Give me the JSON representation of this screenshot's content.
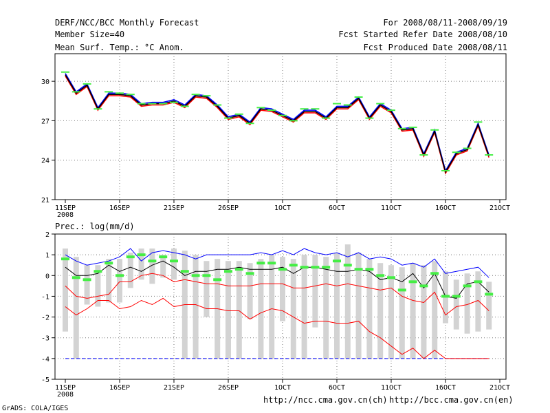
{
  "header": {
    "title": "DERF/NCC/BCC Monthly Forecast",
    "member_size": "Member Size=40",
    "variable": "Mean Surf. Temp.: °C Anom.",
    "period": "For 2008/08/11-2008/09/19",
    "started": "Fcst Started Refer Date 2008/08/10",
    "produced": "Fcst Produced Date 2008/08/11"
  },
  "footer": {
    "url_ncc": "http://ncc.cma.gov.cn(ch)",
    "url_bcc": "http://bcc.cma.gov.cn(en)",
    "credit": "GrADS: COLA/IGES"
  },
  "colors": {
    "member_max": "#0000ff",
    "member_min": "#ff0000",
    "ensemble_mean": "#000000",
    "observed_marker": "#44ee44",
    "spread_bar": "#d3d3d3",
    "grid": "#777777"
  },
  "chart_data": [
    {
      "type": "line",
      "title": "Mean Surf. Temp.: °C Anom.",
      "x_labels": [
        "11SEP",
        "16SEP",
        "21SEP",
        "26SEP",
        "1OCT",
        "6OCT",
        "11OCT",
        "16OCT",
        "21OCT"
      ],
      "x_sublabel": "2008",
      "y_ticks": [
        21,
        24,
        27,
        30
      ],
      "ylim": [
        21,
        32.1
      ],
      "n_days": 40,
      "series": [
        {
          "name": "ensemble-mean",
          "color": "#000000",
          "values": [
            30.5,
            29.1,
            29.7,
            27.9,
            29.0,
            29.0,
            28.9,
            28.2,
            28.3,
            28.3,
            28.5,
            28.1,
            28.9,
            28.8,
            28.1,
            27.2,
            27.4,
            26.8,
            27.9,
            27.8,
            27.4,
            27.0,
            27.7,
            27.7,
            27.2,
            28.0,
            28.0,
            28.7,
            27.2,
            28.2,
            27.7,
            26.3,
            26.4,
            24.4,
            26.2,
            23.1,
            24.5,
            24.8,
            26.7,
            24.3
          ]
        },
        {
          "name": "member-max",
          "color": "#0000ff",
          "values": [
            30.6,
            29.2,
            29.8,
            28.0,
            29.1,
            29.1,
            29.0,
            28.3,
            28.4,
            28.4,
            28.6,
            28.2,
            29.0,
            28.9,
            28.2,
            27.3,
            27.5,
            26.9,
            28.0,
            27.9,
            27.5,
            27.1,
            27.8,
            27.8,
            27.3,
            28.1,
            28.1,
            28.8,
            27.3,
            28.3,
            27.8,
            26.4,
            26.5,
            24.5,
            26.3,
            23.2,
            24.6,
            24.9,
            26.8,
            24.4
          ]
        },
        {
          "name": "member-min",
          "color": "#ff0000",
          "values": [
            30.4,
            29.0,
            29.6,
            27.8,
            28.9,
            28.9,
            28.8,
            28.1,
            28.2,
            28.2,
            28.4,
            28.0,
            28.8,
            28.7,
            28.0,
            27.1,
            27.3,
            26.7,
            27.8,
            27.7,
            27.3,
            26.9,
            27.6,
            27.6,
            27.1,
            27.9,
            27.9,
            28.6,
            27.1,
            28.1,
            27.6,
            26.2,
            26.3,
            24.3,
            26.1,
            23.0,
            24.4,
            24.7,
            26.6,
            24.2
          ]
        },
        {
          "name": "observed",
          "color": "#44ee44",
          "marker": "dash",
          "values": [
            30.7,
            29.2,
            29.8,
            27.9,
            29.2,
            29.1,
            29.0,
            28.3,
            28.3,
            28.3,
            28.4,
            28.1,
            29.0,
            28.9,
            28.2,
            27.2,
            27.5,
            26.8,
            28.0,
            27.8,
            27.4,
            27.0,
            27.9,
            27.9,
            27.2,
            28.3,
            28.2,
            28.8,
            27.2,
            28.3,
            27.8,
            26.4,
            26.5,
            24.4,
            26.3,
            23.2,
            24.6,
            24.9,
            26.9,
            24.4
          ]
        }
      ]
    },
    {
      "type": "line",
      "title": "Prec.: log(mm/d)",
      "x_labels": [
        "11SEP",
        "16SEP",
        "21SEP",
        "26SEP",
        "1OCT",
        "6OCT",
        "11OCT",
        "16OCT",
        "21OCT"
      ],
      "x_sublabel": "2008",
      "y_ticks": [
        -5,
        -4,
        -3,
        -2,
        -1,
        0,
        1,
        2
      ],
      "ylim": [
        -5,
        2
      ],
      "n_days": 40,
      "series": [
        {
          "name": "member-max",
          "color": "#0000ff",
          "values": [
            1.0,
            0.7,
            0.5,
            0.6,
            0.7,
            0.9,
            1.3,
            0.7,
            1.1,
            1.2,
            1.1,
            1.0,
            0.8,
            1.0,
            1.0,
            1.0,
            1.0,
            1.0,
            1.1,
            1.0,
            1.2,
            1.0,
            1.3,
            1.1,
            1.0,
            1.1,
            0.9,
            1.1,
            0.8,
            0.9,
            0.8,
            0.5,
            0.6,
            0.4,
            0.8,
            0.1,
            0.2,
            0.3,
            0.4,
            -0.1
          ]
        },
        {
          "name": "ensemble-mean",
          "color": "#000000",
          "values": [
            0.4,
            0.0,
            0.0,
            0.1,
            0.5,
            0.2,
            0.4,
            0.2,
            0.5,
            0.7,
            0.4,
            0.0,
            0.2,
            0.2,
            0.3,
            0.3,
            0.4,
            0.3,
            0.3,
            0.3,
            0.4,
            0.1,
            0.4,
            0.4,
            0.3,
            0.2,
            0.2,
            0.3,
            0.2,
            -0.2,
            -0.1,
            -0.3,
            0.1,
            -0.6,
            0.1,
            -1.0,
            -1.1,
            -0.4,
            -0.3,
            -0.8
          ]
        },
        {
          "name": "member-min-upper",
          "color": "#ff0000",
          "values": [
            -0.5,
            -1.0,
            -1.1,
            -1.0,
            -0.9,
            -0.3,
            -0.3,
            0.0,
            0.1,
            0.0,
            -0.3,
            -0.2,
            -0.3,
            -0.4,
            -0.4,
            -0.5,
            -0.5,
            -0.5,
            -0.4,
            -0.4,
            -0.4,
            -0.6,
            -0.6,
            -0.5,
            -0.4,
            -0.5,
            -0.4,
            -0.5,
            -0.6,
            -0.7,
            -0.6,
            -1.0,
            -1.2,
            -1.3,
            -0.8,
            -1.9,
            -1.5,
            -1.4,
            -1.2,
            -1.7
          ]
        },
        {
          "name": "member-min-lower",
          "color": "#ff0000",
          "values": [
            -1.5,
            -1.9,
            -1.6,
            -1.2,
            -1.2,
            -1.6,
            -1.5,
            -1.2,
            -1.4,
            -1.1,
            -1.5,
            -1.4,
            -1.4,
            -1.6,
            -1.6,
            -1.7,
            -1.7,
            -2.1,
            -1.8,
            -1.6,
            -1.7,
            -2.0,
            -2.3,
            -2.2,
            -2.2,
            -2.3,
            -2.3,
            -2.2,
            -2.7,
            -3.0,
            -3.4,
            -3.8,
            -3.5,
            -4.0,
            -3.6,
            -4.0,
            -4.0,
            -4.0,
            -4.0,
            -4.0
          ]
        },
        {
          "name": "lower-limit",
          "color": "#0000ff",
          "style": "dashed",
          "values": [
            -4.0,
            -4.0,
            -4.0,
            -4.0,
            -4.0,
            -4.0,
            -4.0,
            -4.0,
            -4.0,
            -4.0,
            -4.0,
            -4.0,
            -4.0,
            -4.0,
            -4.0,
            -4.0,
            -4.0,
            -4.0,
            -4.0,
            -4.0,
            -4.0,
            -4.0,
            -4.0,
            -4.0,
            -4.0,
            -4.0,
            -4.0,
            -4.0,
            -4.0,
            -4.0,
            -4.0,
            -4.0,
            -4.0,
            -4.0,
            -4.0,
            -4.0,
            -4.0,
            -4.0,
            -4.0,
            -4.0
          ]
        },
        {
          "name": "observed",
          "color": "#44ee44",
          "marker": "dash",
          "values": [
            0.8,
            -0.1,
            -0.2,
            0.2,
            0.6,
            0.0,
            0.9,
            1.0,
            0.7,
            0.9,
            0.7,
            0.2,
            0.0,
            0.0,
            -0.2,
            0.2,
            0.3,
            0.1,
            0.6,
            0.6,
            0.3,
            0.5,
            0.4,
            0.4,
            0.4,
            0.7,
            0.5,
            0.3,
            0.3,
            0.0,
            -0.1,
            -0.7,
            -0.3,
            -0.5,
            0.1,
            -1.0,
            -1.0,
            -0.5,
            -0.3,
            -0.9
          ]
        },
        {
          "name": "spread-top",
          "color": "#d3d3d3",
          "values": [
            1.3,
            0.9,
            0.5,
            0.5,
            0.8,
            0.8,
            1.1,
            1.3,
            1.3,
            1.0,
            1.3,
            1.2,
            1.0,
            0.7,
            0.8,
            0.7,
            0.7,
            0.6,
            0.8,
            1.0,
            0.9,
            0.8,
            1.0,
            1.0,
            0.9,
            1.1,
            1.5,
            1.1,
            0.8,
            0.6,
            0.5,
            0.4,
            0.6,
            0.5,
            0.7,
            0.2,
            -0.2,
            0.1,
            0.2,
            -0.3
          ]
        },
        {
          "name": "spread-bottom",
          "color": "#d3d3d3",
          "values": [
            -2.7,
            -4.0,
            -1.4,
            -1.5,
            -1.3,
            -1.3,
            -0.6,
            -0.2,
            -0.4,
            -0.1,
            -0.2,
            -4.0,
            -4.0,
            -2.0,
            -4.0,
            -4.0,
            -4.0,
            -2.1,
            -4.0,
            -4.0,
            -2.2,
            -4.0,
            -4.0,
            -2.5,
            -4.0,
            -4.0,
            -4.0,
            -4.0,
            -4.0,
            -4.0,
            -4.0,
            -4.0,
            -4.0,
            -4.0,
            -4.0,
            -2.3,
            -2.6,
            -2.8,
            -2.7,
            -2.6
          ]
        }
      ]
    }
  ]
}
